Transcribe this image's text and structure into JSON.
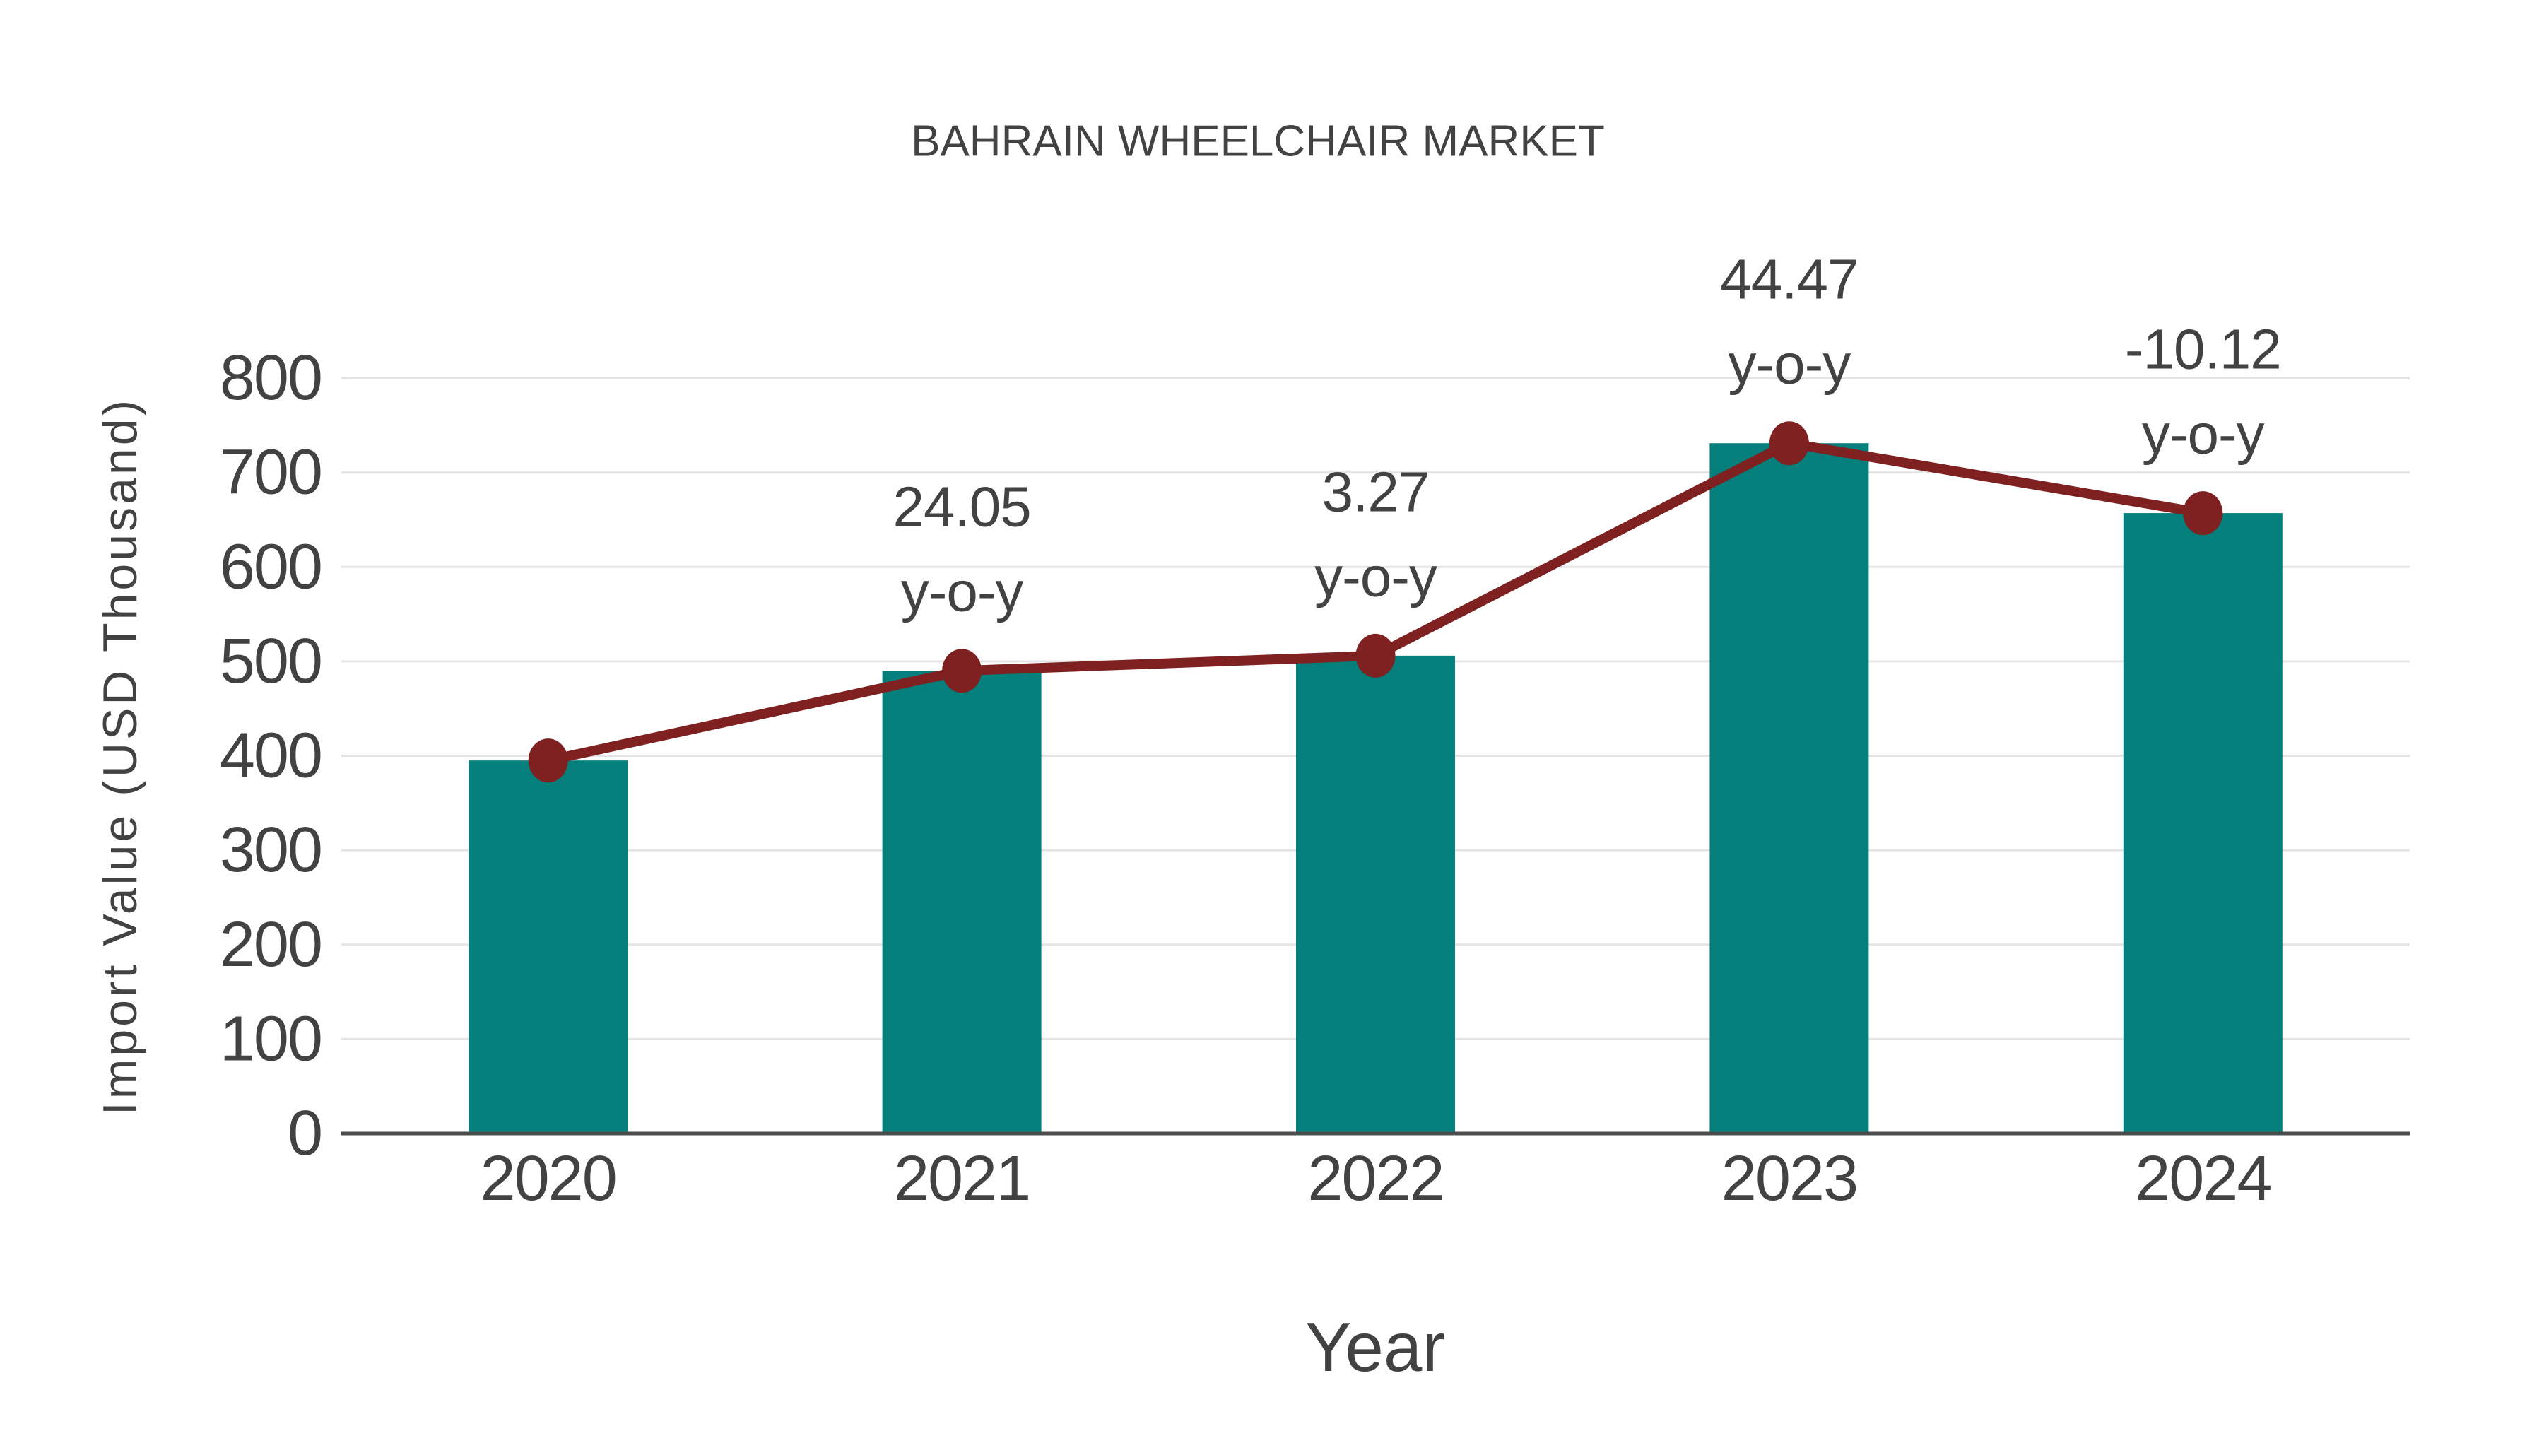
{
  "title": "BAHRAIN WHEELCHAIR MARKET",
  "chart_data": {
    "type": "bar",
    "categories": [
      "2020",
      "2021",
      "2022",
      "2023",
      "2024"
    ],
    "series": [
      {
        "name": "import-value-bars",
        "type": "bar",
        "values": [
          395,
          490,
          506,
          731,
          657
        ]
      },
      {
        "name": "import-value-trend",
        "type": "line",
        "values": [
          395,
          490,
          506,
          731,
          657
        ]
      }
    ],
    "annotations": [
      {
        "category": "2021",
        "value_label": "24.05",
        "suffix": "y-o-y"
      },
      {
        "category": "2022",
        "value_label": "3.27",
        "suffix": "y-o-y"
      },
      {
        "category": "2023",
        "value_label": "44.47",
        "suffix": "y-o-y"
      },
      {
        "category": "2024",
        "value_label": "-10.12",
        "suffix": "y-o-y"
      }
    ],
    "title": "BAHRAIN WHEELCHAIR MARKET",
    "xlabel": "Year",
    "ylabel": "Import Value (USD Thousand)",
    "ylim": [
      0,
      800
    ],
    "yticks": [
      0,
      100,
      200,
      300,
      400,
      500,
      600,
      700,
      800
    ],
    "grid": true,
    "legend_position": "none"
  },
  "colors": {
    "bar": "#047f7b",
    "line": "#7f2121",
    "text": "#424242",
    "grid": "#e4e4e4",
    "axis": "#4d4d4d",
    "background": "#ffffff"
  }
}
